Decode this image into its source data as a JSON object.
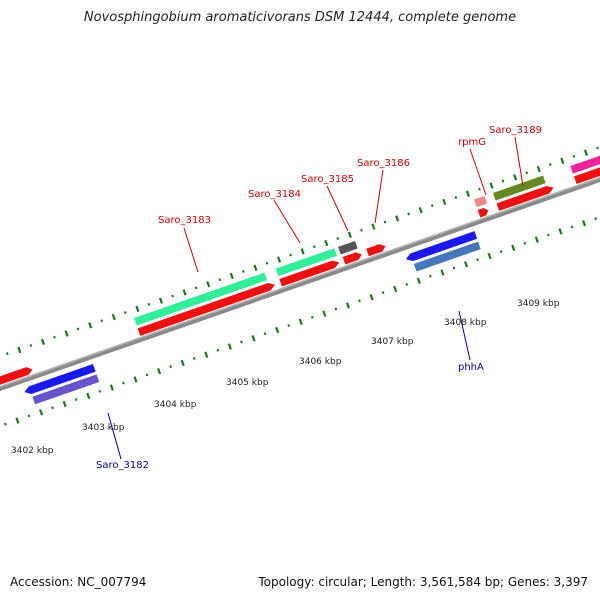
{
  "title": "Novosphingobium aromaticivorans DSM 12444, complete genome",
  "footer": {
    "accession": "Accession: NC_007794",
    "topology": "Topology: circular; Length: 3,561,584 bp; Genes: 3,397"
  },
  "colors": {
    "backbone": "#888888",
    "forward_label": "#cc0000",
    "reverse_label": "#000099",
    "tick": "#1a7a1a"
  },
  "kbp_labels": [
    "3402 kbp",
    "3403 kbp",
    "3404 kbp",
    "3405 kbp",
    "3406 kbp",
    "3407 kbp",
    "3408 kbp",
    "3409 kbp"
  ],
  "gene_labels": {
    "saro_3182": "Saro_3182",
    "saro_3183": "Saro_3183",
    "saro_3184": "Saro_3184",
    "saro_3185": "Saro_3185",
    "saro_3186": "Saro_3186",
    "rpmg": "rpmG",
    "saro_3189": "Saro_3189",
    "phha": "phhA"
  }
}
